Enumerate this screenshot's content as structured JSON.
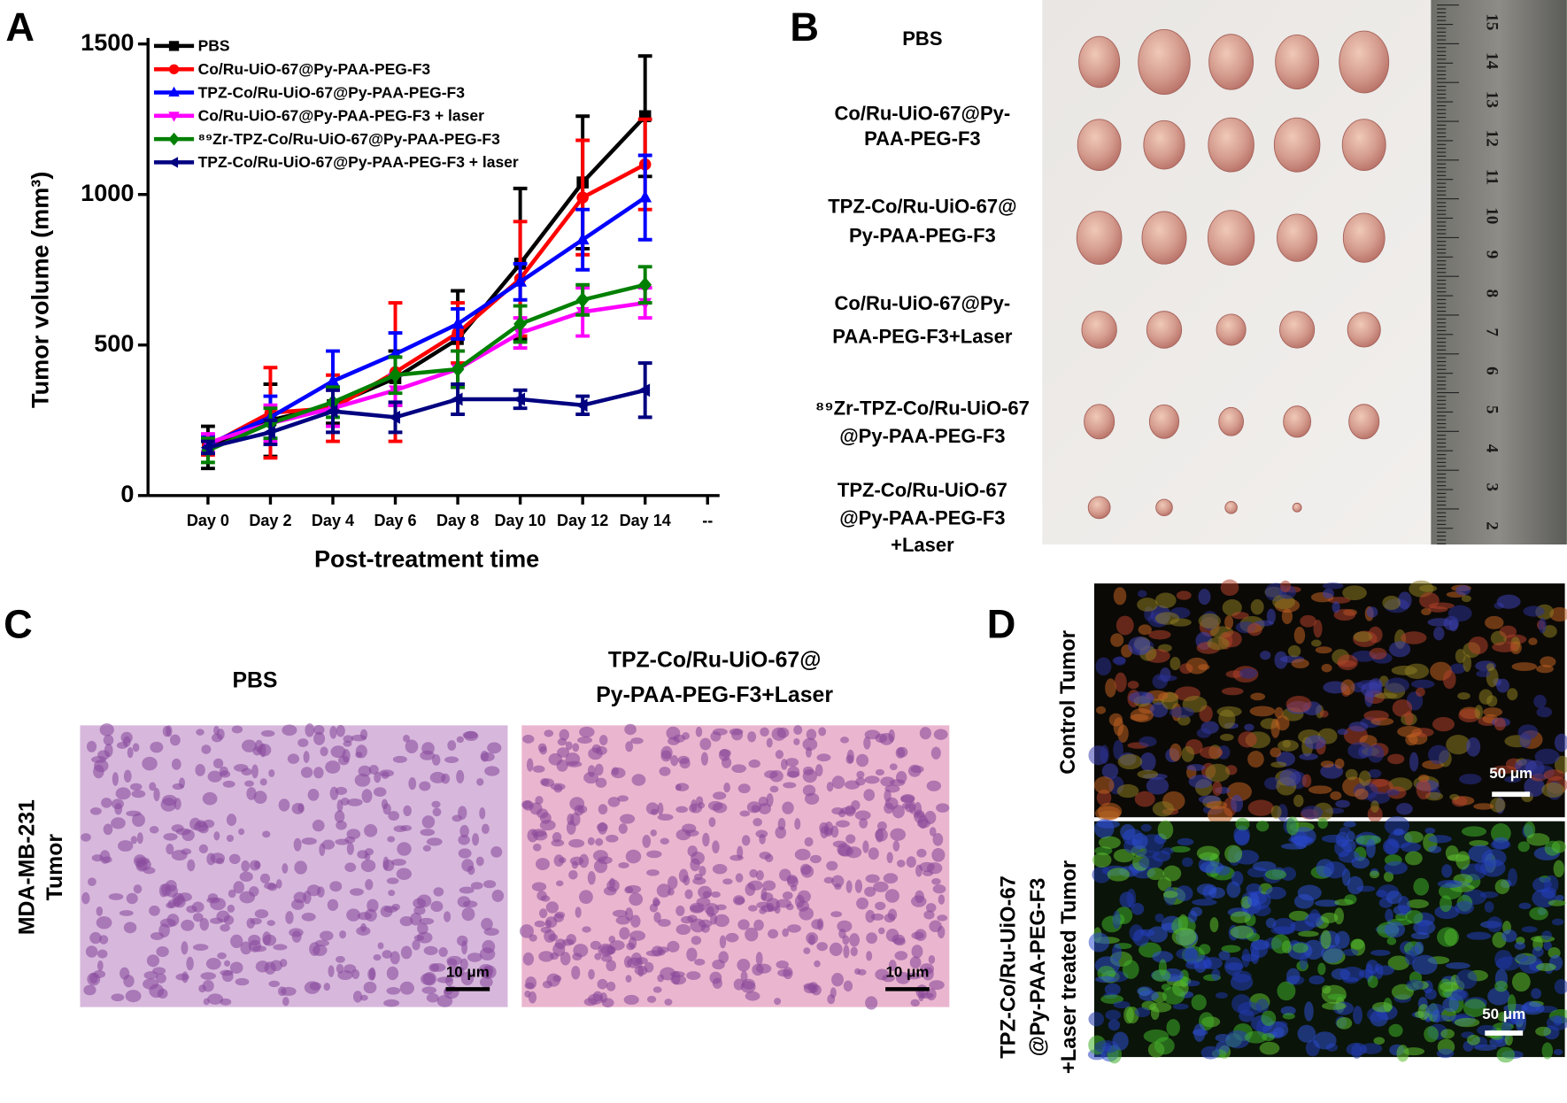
{
  "chart_data": {
    "type": "line",
    "x_label": "Post-treatment time",
    "y_label": "Tumor volume (mm³)",
    "categories": [
      "Day 0",
      "Day 2",
      "Day 4",
      "Day 6",
      "Day 8",
      "Day 10",
      "Day 12",
      "Day 14",
      "--"
    ],
    "ylim": [
      0,
      1500
    ],
    "yticks": [
      0,
      500,
      1000,
      1500
    ],
    "series": [
      {
        "name": "PBS",
        "color": "#000000",
        "marker": "square",
        "values": [
          160,
          250,
          300,
          390,
          520,
          770,
          1040,
          1260,
          null
        ],
        "errors": [
          70,
          120,
          60,
          90,
          160,
          250,
          220,
          200,
          null
        ]
      },
      {
        "name": "Co/Ru-UiO-67@Py-PAA-PEG-F3",
        "color": "#ff0000",
        "marker": "circle",
        "values": [
          165,
          275,
          290,
          410,
          540,
          720,
          990,
          1100,
          null
        ],
        "errors": [
          30,
          150,
          110,
          230,
          100,
          190,
          190,
          150,
          null
        ]
      },
      {
        "name": "TPZ-Co/Ru-UiO-67@Py-PAA-PEG-F3",
        "color": "#0000ff",
        "marker": "triangle-up",
        "values": [
          170,
          260,
          380,
          470,
          570,
          710,
          850,
          990,
          null
        ],
        "errors": [
          30,
          70,
          100,
          70,
          50,
          60,
          100,
          140,
          null
        ]
      },
      {
        "name": "Co/Ru-UiO-67@Py-PAA-PEG-F3 + laser",
        "color": "#ff00ff",
        "marker": "triangle-down",
        "values": [
          175,
          240,
          290,
          350,
          420,
          540,
          610,
          640,
          null
        ],
        "errors": [
          30,
          60,
          60,
          50,
          60,
          50,
          80,
          50,
          null
        ]
      },
      {
        "name": "⁸⁹Zr-TPZ-Co/Ru-UiO-67@Py-PAA-PEG-F3",
        "color": "#008000",
        "marker": "diamond",
        "values": [
          150,
          240,
          310,
          400,
          420,
          570,
          650,
          700,
          null
        ],
        "errors": [
          40,
          50,
          50,
          60,
          60,
          60,
          50,
          60,
          null
        ]
      },
      {
        "name": "TPZ-Co/Ru-UiO-67@Py-PAA-PEG-F3 + laser",
        "color": "#000080",
        "marker": "triangle-left",
        "values": [
          160,
          210,
          280,
          260,
          320,
          320,
          300,
          350,
          null
        ],
        "errors": [
          20,
          40,
          70,
          50,
          50,
          30,
          30,
          90,
          null
        ]
      }
    ]
  },
  "panel_letters": [
    "A",
    "B",
    "C",
    "D"
  ],
  "panel_b": {
    "groups": [
      [
        "PBS"
      ],
      [
        "Co/Ru-UiO-67@Py-",
        "PAA-PEG-F3"
      ],
      [
        "TPZ-Co/Ru-UiO-67@",
        "Py-PAA-PEG-F3"
      ],
      [
        "Co/Ru-UiO-67@Py-",
        "PAA-PEG-F3+Laser"
      ],
      [
        "⁸⁹Zr-TPZ-Co/Ru-UiO-67",
        "@Py-PAA-PEG-F3"
      ],
      [
        "TPZ-Co/Ru-UiO-67",
        "@Py-PAA-PEG-F3",
        "+Laser"
      ]
    ],
    "ruler": [
      15,
      14,
      13,
      12,
      11,
      10,
      9,
      8,
      7,
      6,
      5,
      4,
      3,
      2
    ]
  },
  "panel_c": {
    "titles": [
      [
        "PBS"
      ],
      [
        "TPZ-Co/Ru-UiO-67@",
        "Py-PAA-PEG-F3+Laser"
      ]
    ],
    "row_label": [
      "MDA-MB-231",
      "Tumor"
    ],
    "scale_bar": "10 μm"
  },
  "panel_d": {
    "row_labels": [
      [
        "Control Tumor"
      ],
      [
        "TPZ-Co/Ru-UiO-67",
        "@Py-PAA-PEG-F3",
        "+Laser treated Tumor"
      ]
    ],
    "scale_bar": "50 μm"
  }
}
